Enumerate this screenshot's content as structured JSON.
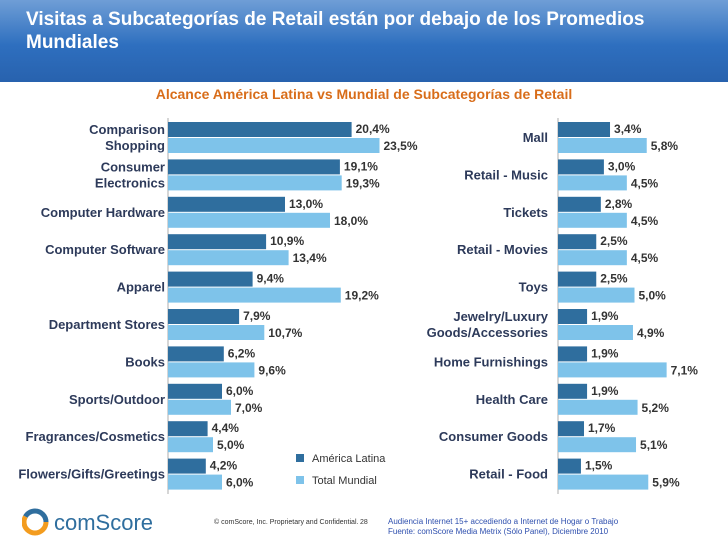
{
  "title": "Visitas a Subcategorías de Retail están por debajo de los Promedios Mundiales",
  "subtitle": "Alcance América Latina vs Mundial de Subcategorías de Retail",
  "colors": {
    "latam": "#2f6e9e",
    "mundial": "#7ec3ea",
    "title_bg": "#2e6fbf",
    "subtitle": "#d86d1a"
  },
  "chart_data": [
    {
      "type": "bar",
      "orientation": "horizontal",
      "categories": [
        "Comparison Shopping",
        "Consumer Electronics",
        "Computer Hardware",
        "Computer Software",
        "Apparel",
        "Department Stores",
        "Books",
        "Sports/Outdoor",
        "Fragrances/Cosmetics",
        "Flowers/Gifts/Greetings"
      ],
      "series": [
        {
          "name": "América Latina",
          "values": [
            20.4,
            19.1,
            13.0,
            10.9,
            9.4,
            7.9,
            6.2,
            6.0,
            4.4,
            4.2
          ],
          "labels": [
            "20,4%",
            "19,1%",
            "13,0%",
            "10,9%",
            "9,4%",
            "7,9%",
            "6,2%",
            "6,0%",
            "4,4%",
            "4,2%"
          ]
        },
        {
          "name": "Total Mundial",
          "values": [
            23.5,
            19.3,
            18.0,
            13.4,
            19.2,
            10.7,
            9.6,
            7.0,
            5.0,
            6.0
          ],
          "labels": [
            "23,5%",
            "19,3%",
            "18,0%",
            "13,4%",
            "19,2%",
            "10,7%",
            "9,6%",
            "7,0%",
            "5,0%",
            "6,0%"
          ]
        }
      ],
      "xlim": [
        0,
        30
      ]
    },
    {
      "type": "bar",
      "orientation": "horizontal",
      "categories": [
        "Mall",
        "Retail - Music",
        "Tickets",
        "Retail - Movies",
        "Toys",
        "Jewelry/Luxury Goods/Accessories",
        "Home Furnishings",
        "Health Care",
        "Consumer Goods",
        "Retail - Food"
      ],
      "series": [
        {
          "name": "América Latina",
          "values": [
            3.4,
            3.0,
            2.8,
            2.5,
            2.5,
            1.9,
            1.9,
            1.9,
            1.7,
            1.5
          ],
          "labels": [
            "3,4%",
            "3,0%",
            "2,8%",
            "2,5%",
            "2,5%",
            "1,9%",
            "1,9%",
            "1,9%",
            "1,7%",
            "1,5%"
          ]
        },
        {
          "name": "Total Mundial",
          "values": [
            5.8,
            4.5,
            4.5,
            4.5,
            5.0,
            4.9,
            7.1,
            5.2,
            5.1,
            5.9
          ],
          "labels": [
            "5,8%",
            "4,5%",
            "4,5%",
            "4,5%",
            "5,0%",
            "4,9%",
            "7,1%",
            "5,2%",
            "5,1%",
            "5,9%"
          ]
        }
      ],
      "xlim": [
        0,
        8.5
      ]
    }
  ],
  "left_labels": [
    [
      "Comparison",
      "Shopping"
    ],
    [
      "Consumer",
      "Electronics"
    ],
    [
      "Computer Hardware"
    ],
    [
      "Computer Software"
    ],
    [
      "Apparel"
    ],
    [
      "Department Stores"
    ],
    [
      "Books"
    ],
    [
      "Sports/Outdoor"
    ],
    [
      "Fragrances/Cosmetics"
    ],
    [
      "Flowers/Gifts/Greetings"
    ]
  ],
  "right_labels": [
    [
      "Mall"
    ],
    [
      "Retail - Music"
    ],
    [
      "Tickets"
    ],
    [
      "Retail - Movies"
    ],
    [
      "Toys"
    ],
    [
      "Jewelry/Luxury",
      "Goods/Accessories"
    ],
    [
      "Home Furnishings"
    ],
    [
      "Health Care"
    ],
    [
      "Consumer Goods"
    ],
    [
      "Retail - Food"
    ]
  ],
  "legend": {
    "latam": "América Latina",
    "mundial": "Total Mundial"
  },
  "footer": {
    "logo": "comScore",
    "copyright": "© comScore, Inc.   Proprietary and Confidential.",
    "page": "28",
    "note_line1": "Audiencia Internet 15+  accediendo a Internet de Hogar o Trabajo",
    "note_line2": "Fuente:  comScore Media Metrix (Sólo Panel), Diciembre 2010"
  }
}
